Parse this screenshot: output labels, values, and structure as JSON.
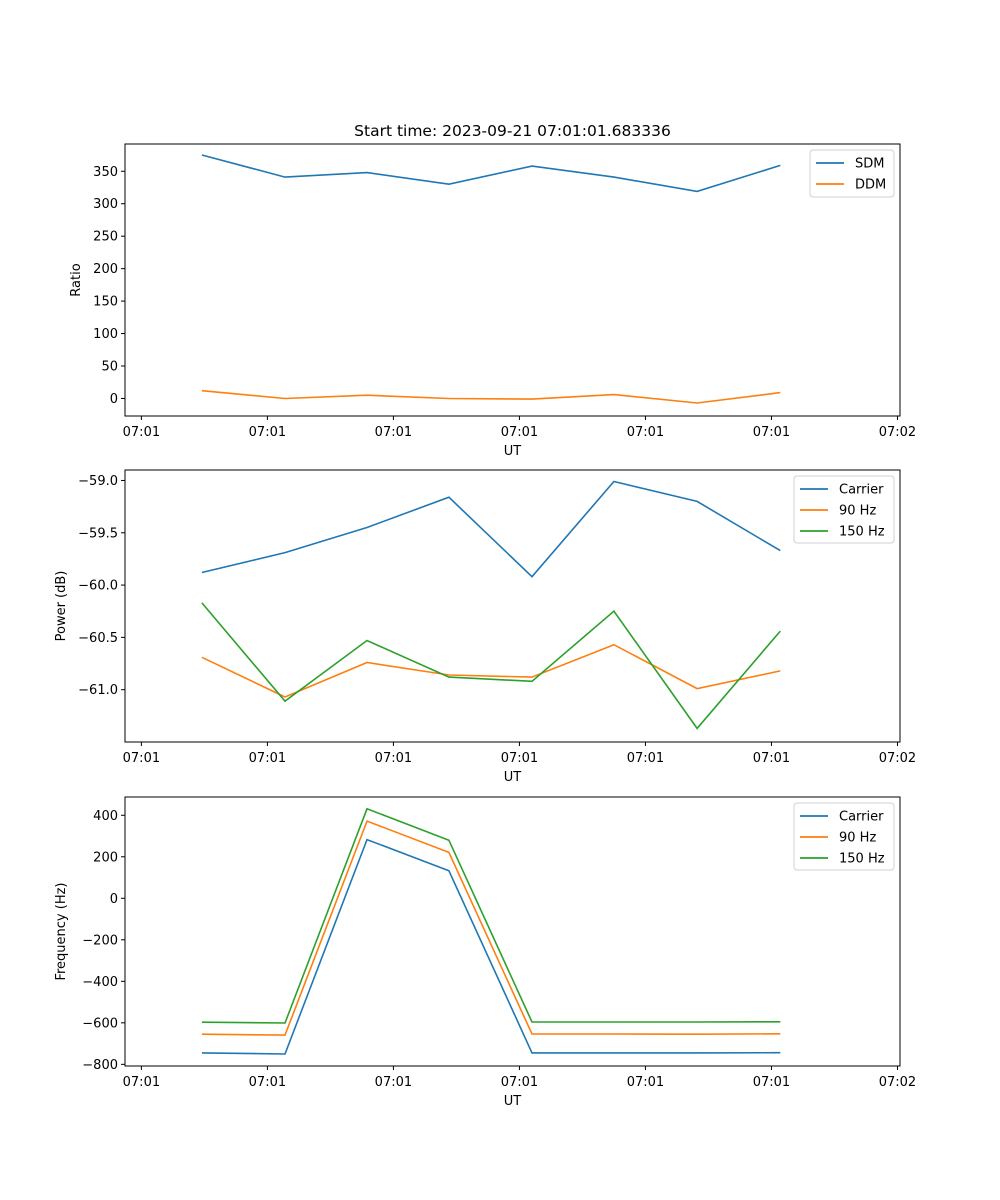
{
  "figure": {
    "title": "Start time: 2023-09-21 07:01:01.683336"
  },
  "chart_data": [
    {
      "type": "line",
      "title": "Start time: 2023-09-21 07:01:01.683336",
      "xlabel": "UT",
      "ylabel": "Ratio",
      "x_units": "seconds after 07:01:00",
      "xlim": [
        -1.3,
        60.2
      ],
      "ylim": [
        -27,
        392
      ],
      "x_ticks": [
        0,
        10,
        20,
        30,
        40,
        50,
        60
      ],
      "x_tick_labels": [
        "07:01",
        "07:01",
        "07:01",
        "07:01",
        "07:01",
        "07:01",
        "07:02"
      ],
      "y_ticks": [
        0,
        50,
        100,
        150,
        200,
        250,
        300,
        350
      ],
      "y_tick_labels": [
        "0",
        "50",
        "100",
        "150",
        "200",
        "250",
        "300",
        "350"
      ],
      "grid": false,
      "legend_position": "top-right",
      "x": [
        4.8,
        11.4,
        17.9,
        24.4,
        31.0,
        37.5,
        44.1,
        50.7
      ],
      "series": [
        {
          "name": "SDM",
          "color": "#1f77b4",
          "values": [
            375,
            341,
            348,
            330,
            358,
            341,
            319,
            359
          ]
        },
        {
          "name": "DDM",
          "color": "#ff7f0e",
          "values": [
            12,
            0,
            5,
            0,
            -1,
            6,
            -7,
            9
          ]
        }
      ]
    },
    {
      "type": "line",
      "title": "",
      "xlabel": "UT",
      "ylabel": "Power (dB)",
      "x_units": "seconds after 07:01:00",
      "xlim": [
        -1.3,
        60.2
      ],
      "ylim": [
        -61.5,
        -58.9
      ],
      "x_ticks": [
        0,
        10,
        20,
        30,
        40,
        50,
        60
      ],
      "x_tick_labels": [
        "07:01",
        "07:01",
        "07:01",
        "07:01",
        "07:01",
        "07:01",
        "07:02"
      ],
      "y_ticks": [
        -61.0,
        -60.5,
        -60.0,
        -59.5,
        -59.0
      ],
      "y_tick_labels": [
        "−61.0",
        "−60.5",
        "−60.0",
        "−59.5",
        "−59.0"
      ],
      "grid": false,
      "legend_position": "top-right",
      "x": [
        4.8,
        11.4,
        17.9,
        24.4,
        31.0,
        37.5,
        44.1,
        50.7
      ],
      "series": [
        {
          "name": "Carrier",
          "color": "#1f77b4",
          "values": [
            -59.88,
            -59.69,
            -59.45,
            -59.16,
            -59.92,
            -59.01,
            -59.2,
            -59.67
          ]
        },
        {
          "name": "90 Hz",
          "color": "#ff7f0e",
          "values": [
            -60.69,
            -61.07,
            -60.74,
            -60.86,
            -60.88,
            -60.57,
            -60.99,
            -60.82
          ]
        },
        {
          "name": "150 Hz",
          "color": "#2ca02c",
          "values": [
            -60.17,
            -61.11,
            -60.53,
            -60.88,
            -60.92,
            -60.25,
            -61.37,
            -60.44
          ]
        }
      ]
    },
    {
      "type": "line",
      "title": "",
      "xlabel": "UT",
      "ylabel": "Frequency (Hz)",
      "x_units": "seconds after 07:01:00",
      "xlim": [
        -1.3,
        60.2
      ],
      "ylim": [
        -808,
        488
      ],
      "x_ticks": [
        0,
        10,
        20,
        30,
        40,
        50,
        60
      ],
      "x_tick_labels": [
        "07:01",
        "07:01",
        "07:01",
        "07:01",
        "07:01",
        "07:01",
        "07:02"
      ],
      "y_ticks": [
        -800,
        -600,
        -400,
        -200,
        0,
        200,
        400
      ],
      "y_tick_labels": [
        "−800",
        "−600",
        "−400",
        "−200",
        "0",
        "200",
        "400"
      ],
      "grid": false,
      "legend_position": "top-right",
      "x": [
        4.8,
        11.4,
        17.9,
        24.4,
        31.0,
        37.5,
        44.1,
        50.7
      ],
      "series": [
        {
          "name": "Carrier",
          "color": "#1f77b4",
          "values": [
            -745,
            -750,
            283,
            133,
            -745,
            -745,
            -745,
            -744
          ]
        },
        {
          "name": "90 Hz",
          "color": "#ff7f0e",
          "values": [
            -655,
            -659,
            372,
            221,
            -654,
            -654,
            -655,
            -653
          ]
        },
        {
          "name": "150 Hz",
          "color": "#2ca02c",
          "values": [
            -597,
            -601,
            431,
            280,
            -596,
            -596,
            -596,
            -595
          ]
        }
      ]
    }
  ]
}
